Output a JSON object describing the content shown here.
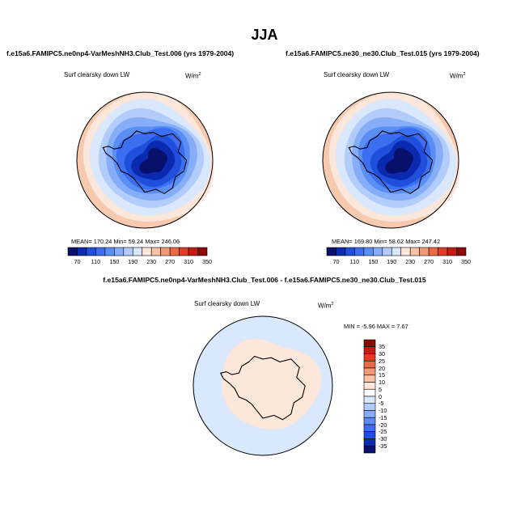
{
  "title": "JJA",
  "variable": "Surf clearsky down LW",
  "units": "W/m",
  "units_exp": "2",
  "panels": [
    {
      "case": "f.e15a6.FAMIPC5.ne0np4-VarMeshNH3.Club_Test.006 (yrs 1979-2004)",
      "stats_text": "MEAN= 170.24  Min=  59.24  Max= 246.06"
    },
    {
      "case": "f.e15a6.FAMIPC5.ne30_ne30.Club_Test.015 (yrs 1979-2004)",
      "stats_text": "MEAN= 169.80  Min=  58.62  Max= 247.42"
    }
  ],
  "diff": {
    "title": "f.e15a6.FAMIPC5.ne0np4-VarMeshNH3.Club_Test.006 - f.e15a6.FAMIPC5.ne30_ne30.Club_Test.015",
    "stats_text": "MIN = -5.96 MAX =  7.67"
  },
  "colorbar_main": {
    "colors": [
      "#08106b",
      "#0a2ab0",
      "#1f4fdb",
      "#3b6ef0",
      "#5b8ef5",
      "#86aef8",
      "#b2cdfb",
      "#d9e8fc",
      "#fde6da",
      "#f9c2a6",
      "#f39a75",
      "#eb6a45",
      "#dd3e22",
      "#c01f10",
      "#8c0a04"
    ],
    "labels": [
      "70",
      "110",
      "150",
      "190",
      "230",
      "270",
      "310",
      "350"
    ]
  },
  "colorbar_diff": {
    "colors": [
      "#8c0a04",
      "#c01f10",
      "#dd3e22",
      "#eb6a45",
      "#f39a75",
      "#f9c2a6",
      "#fde6da",
      "#ffffff",
      "#d9e8fc",
      "#b2cdfb",
      "#86aef8",
      "#5b8ef5",
      "#3b6ef0",
      "#1f4fdb",
      "#0a2ab0",
      "#08106b"
    ],
    "labels": [
      "35",
      "30",
      "25",
      "20",
      "15",
      "10",
      "5",
      "0",
      "-5",
      "-10",
      "-15",
      "-20",
      "-25",
      "-30",
      "-35"
    ]
  },
  "map_colors": {
    "ocean_outer": "#f7c9ae",
    "ring1": "#fde6da",
    "ring2": "#d9e8fc",
    "ring3": "#b2cdfb",
    "ring4": "#86aef8",
    "ring5": "#5b8ef5",
    "ring6": "#3b6ef0",
    "interior1": "#1f4fdb",
    "interior2": "#0a2ab0",
    "interior3": "#08106b",
    "diff_ocean": "#d9e8fc",
    "diff_land": "#fde6da"
  }
}
